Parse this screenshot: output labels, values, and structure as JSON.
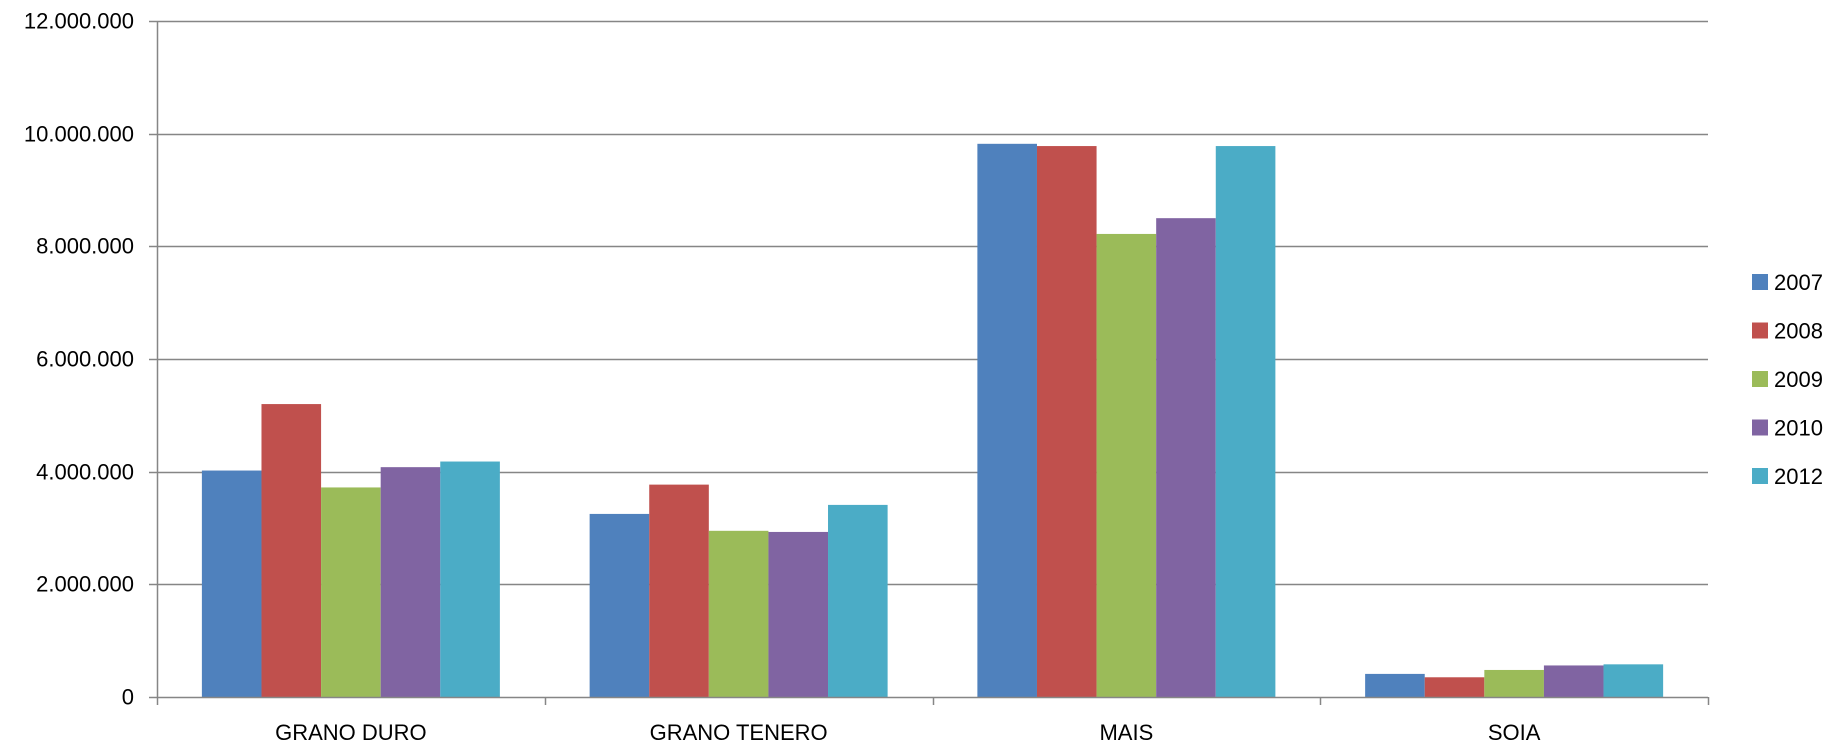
{
  "chart_data": {
    "type": "bar",
    "title": "",
    "xlabel": "",
    "ylabel": "",
    "categories": [
      "GRANO DURO",
      "GRANO TENERO",
      "MAIS",
      "SOIA"
    ],
    "ylim": [
      0,
      12000000
    ],
    "yticks": [
      0,
      2000000,
      4000000,
      6000000,
      8000000,
      10000000,
      12000000
    ],
    "ytick_labels": [
      "0",
      "2.000.000",
      "4.000.000",
      "6.000.000",
      "8.000.000",
      "10.000.000",
      "12.000.000"
    ],
    "grid": true,
    "legend_position": "right",
    "series": [
      {
        "name": "2007",
        "color": "#4F81BD",
        "values": [
          4020000,
          3250000,
          9820000,
          410000
        ]
      },
      {
        "name": "2008",
        "color": "#C0504D",
        "values": [
          5200000,
          3770000,
          9780000,
          350000
        ]
      },
      {
        "name": "2009",
        "color": "#9BBB59",
        "values": [
          3720000,
          2950000,
          8220000,
          480000
        ]
      },
      {
        "name": "2010",
        "color": "#8064A2",
        "values": [
          4080000,
          2930000,
          8500000,
          560000
        ]
      },
      {
        "name": "2012",
        "color": "#4BACC6",
        "values": [
          4180000,
          3410000,
          9780000,
          580000
        ]
      }
    ]
  }
}
